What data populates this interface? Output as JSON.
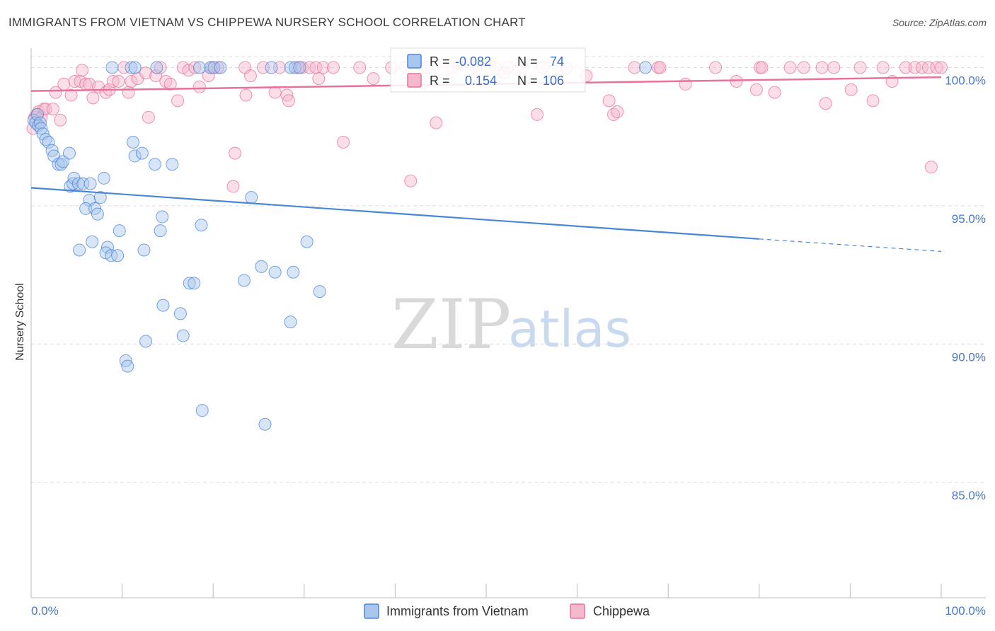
{
  "header": {
    "title": "IMMIGRANTS FROM VIETNAM VS CHIPPEWA NURSERY SCHOOL CORRELATION CHART",
    "source": "Source: ZipAtlas.com"
  },
  "watermark": {
    "zip": "ZIP",
    "atlas": "atlas"
  },
  "colors": {
    "blue": "#4a86d8",
    "blue_fill": "#a9c6ee",
    "pink": "#e8729a",
    "pink_fill": "#f5b8cc",
    "grid": "#dddddd",
    "tick_text": "#4a78c4"
  },
  "stats": {
    "r_label": "R =",
    "n_label": "N =",
    "blue": {
      "r": "-0.082",
      "n": "74"
    },
    "pink": {
      "r": "0.154",
      "n": "106"
    }
  },
  "legend": {
    "items": [
      {
        "label": "Immigrants from Vietnam",
        "color": "#a9c6ee"
      },
      {
        "label": "Chippewa",
        "color": "#f5b8cc"
      }
    ]
  },
  "chart_data": {
    "type": "scatter",
    "title": "IMMIGRANTS FROM VIETNAM VS CHIPPEWA NURSERY SCHOOL CORRELATION CHART",
    "xlabel": "",
    "ylabel": "Nursery School",
    "xlim": [
      0,
      100
    ],
    "ylim": [
      80.8,
      100.6
    ],
    "x_tick_labels": [
      "0.0%",
      "100.0%"
    ],
    "y_ticks": [
      85,
      90,
      95,
      100
    ],
    "y_tick_labels": [
      "85.0%",
      "90.0%",
      "95.0%",
      "100.0%"
    ],
    "series": [
      {
        "name": "Immigrants from Vietnam",
        "r": -0.082,
        "n": 74,
        "trend": {
          "x0": 0,
          "y0": 95.65,
          "x1": 80,
          "y1": 93.8,
          "dash_to_x": 100,
          "dash_to_y": 93.35
        },
        "points": [
          [
            0.3,
            98.1
          ],
          [
            0.5,
            98.0
          ],
          [
            0.7,
            98.3
          ],
          [
            0.8,
            97.9
          ],
          [
            1.0,
            98.0
          ],
          [
            1.1,
            97.8
          ],
          [
            1.3,
            97.6
          ],
          [
            1.6,
            97.4
          ],
          [
            1.9,
            97.3
          ],
          [
            2.3,
            97.0
          ],
          [
            2.5,
            96.8
          ],
          [
            3.0,
            96.5
          ],
          [
            3.3,
            96.5
          ],
          [
            3.5,
            96.6
          ],
          [
            4.2,
            96.9
          ],
          [
            4.3,
            95.7
          ],
          [
            4.6,
            95.8
          ],
          [
            4.7,
            96.0
          ],
          [
            5.2,
            95.8
          ],
          [
            5.7,
            95.8
          ],
          [
            6.4,
            95.2
          ],
          [
            6.0,
            94.9
          ],
          [
            6.5,
            95.8
          ],
          [
            7.0,
            94.9
          ],
          [
            7.6,
            95.3
          ],
          [
            8.0,
            96.0
          ],
          [
            8.4,
            93.5
          ],
          [
            7.3,
            94.7
          ],
          [
            5.3,
            93.4
          ],
          [
            6.7,
            93.7
          ],
          [
            8.2,
            93.3
          ],
          [
            8.8,
            93.2
          ],
          [
            9.5,
            93.2
          ],
          [
            9.7,
            94.1
          ],
          [
            11.2,
            97.3
          ],
          [
            11.4,
            96.8
          ],
          [
            12.2,
            96.9
          ],
          [
            12.4,
            93.4
          ],
          [
            13.6,
            96.5
          ],
          [
            14.4,
            94.6
          ],
          [
            14.2,
            94.1
          ],
          [
            15.5,
            96.5
          ],
          [
            17.4,
            92.2
          ],
          [
            17.9,
            92.2
          ],
          [
            14.5,
            91.4
          ],
          [
            16.4,
            91.1
          ],
          [
            16.7,
            90.3
          ],
          [
            12.6,
            90.1
          ],
          [
            10.4,
            89.4
          ],
          [
            10.6,
            89.2
          ],
          [
            18.7,
            94.3
          ],
          [
            23.4,
            92.3
          ],
          [
            24.2,
            95.3
          ],
          [
            26.8,
            92.6
          ],
          [
            25.3,
            92.8
          ],
          [
            28.8,
            92.6
          ],
          [
            30.3,
            93.7
          ],
          [
            31.7,
            91.9
          ],
          [
            28.5,
            90.8
          ],
          [
            18.8,
            87.6
          ],
          [
            25.7,
            87.1
          ],
          [
            8.9,
            100.0
          ],
          [
            11.0,
            100.0
          ],
          [
            11.4,
            100.0
          ],
          [
            13.8,
            100.0
          ],
          [
            18.5,
            100.0
          ],
          [
            19.7,
            100.0
          ],
          [
            20.1,
            100.0
          ],
          [
            20.8,
            100.0
          ],
          [
            26.4,
            100.0
          ],
          [
            28.5,
            100.0
          ],
          [
            29.0,
            100.0
          ],
          [
            67.5,
            100.0
          ],
          [
            29.5,
            100.0
          ]
        ]
      },
      {
        "name": "Chippewa",
        "r": 0.154,
        "n": 106,
        "trend": {
          "x0": 0,
          "y0": 99.15,
          "x1": 100,
          "y1": 99.65
        },
        "points": [
          [
            0.2,
            97.8
          ],
          [
            0.4,
            98.2
          ],
          [
            0.6,
            98.3
          ],
          [
            0.8,
            98.4
          ],
          [
            1.1,
            98.2
          ],
          [
            1.4,
            98.5
          ],
          [
            1.6,
            98.5
          ],
          [
            2.4,
            98.5
          ],
          [
            3.2,
            98.1
          ],
          [
            2.7,
            99.1
          ],
          [
            3.6,
            99.4
          ],
          [
            4.4,
            99.0
          ],
          [
            4.8,
            99.5
          ],
          [
            5.4,
            99.5
          ],
          [
            5.6,
            99.9
          ],
          [
            6.0,
            99.4
          ],
          [
            6.4,
            99.4
          ],
          [
            6.8,
            98.9
          ],
          [
            7.4,
            99.3
          ],
          [
            8.2,
            99.1
          ],
          [
            8.6,
            99.2
          ],
          [
            9.0,
            99.5
          ],
          [
            9.6,
            99.5
          ],
          [
            10.2,
            100.0
          ],
          [
            10.7,
            99.1
          ],
          [
            11.0,
            99.5
          ],
          [
            11.7,
            99.6
          ],
          [
            12.6,
            99.8
          ],
          [
            12.9,
            98.2
          ],
          [
            13.7,
            99.7
          ],
          [
            14.2,
            100.0
          ],
          [
            14.8,
            99.5
          ],
          [
            15.3,
            99.4
          ],
          [
            16.1,
            98.8
          ],
          [
            16.7,
            100.0
          ],
          [
            17.3,
            99.9
          ],
          [
            18.0,
            100.0
          ],
          [
            18.5,
            99.3
          ],
          [
            19.5,
            99.7
          ],
          [
            19.9,
            100.0
          ],
          [
            20.5,
            100.0
          ],
          [
            22.4,
            96.9
          ],
          [
            22.2,
            95.7
          ],
          [
            23.5,
            100.0
          ],
          [
            23.6,
            99.0
          ],
          [
            24.1,
            99.7
          ],
          [
            25.5,
            100.0
          ],
          [
            26.8,
            99.1
          ],
          [
            27.3,
            100.0
          ],
          [
            28.1,
            99.0
          ],
          [
            28.3,
            98.8
          ],
          [
            29.3,
            100.0
          ],
          [
            29.8,
            100.0
          ],
          [
            30.6,
            100.0
          ],
          [
            31.3,
            100.0
          ],
          [
            31.6,
            99.6
          ],
          [
            32.1,
            100.0
          ],
          [
            33.2,
            100.0
          ],
          [
            34.3,
            97.3
          ],
          [
            36.1,
            100.0
          ],
          [
            37.6,
            99.6
          ],
          [
            39.6,
            100.0
          ],
          [
            41.1,
            100.0
          ],
          [
            41.7,
            95.9
          ],
          [
            43.5,
            100.0
          ],
          [
            44.5,
            98.0
          ],
          [
            46.3,
            100.0
          ],
          [
            48.9,
            100.0
          ],
          [
            51.0,
            100.0
          ],
          [
            52.4,
            100.0
          ],
          [
            54.0,
            100.0
          ],
          [
            55.6,
            98.3
          ],
          [
            56.2,
            100.0
          ],
          [
            58.8,
            100.0
          ],
          [
            61.0,
            99.7
          ],
          [
            63.5,
            98.8
          ],
          [
            64.0,
            98.3
          ],
          [
            64.4,
            98.4
          ],
          [
            66.3,
            100.0
          ],
          [
            68.9,
            100.0
          ],
          [
            69.1,
            100.0
          ],
          [
            71.9,
            99.4
          ],
          [
            75.2,
            100.0
          ],
          [
            77.5,
            99.5
          ],
          [
            79.7,
            99.2
          ],
          [
            80.1,
            100.0
          ],
          [
            80.3,
            100.0
          ],
          [
            81.7,
            99.1
          ],
          [
            83.4,
            100.0
          ],
          [
            84.9,
            100.0
          ],
          [
            86.9,
            100.0
          ],
          [
            87.3,
            98.7
          ],
          [
            88.2,
            100.0
          ],
          [
            90.1,
            99.2
          ],
          [
            91.1,
            100.0
          ],
          [
            92.5,
            98.8
          ],
          [
            93.6,
            100.0
          ],
          [
            94.6,
            99.5
          ],
          [
            96.1,
            100.0
          ],
          [
            97.1,
            100.0
          ],
          [
            97.9,
            100.0
          ],
          [
            98.6,
            100.0
          ],
          [
            98.9,
            96.4
          ],
          [
            99.5,
            100.0
          ],
          [
            100.0,
            100.0
          ],
          [
            52.0,
            99.8
          ]
        ]
      }
    ]
  }
}
